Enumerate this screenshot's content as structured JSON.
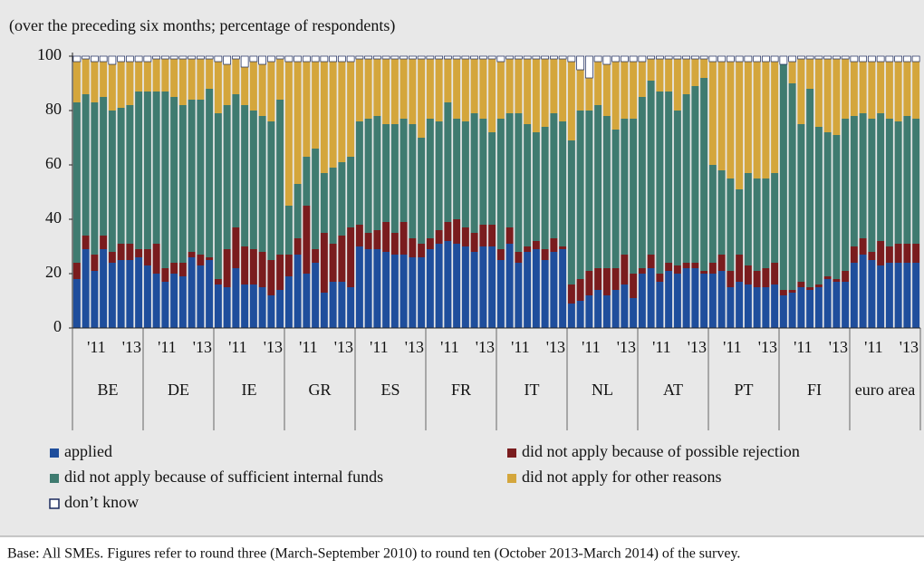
{
  "chart_data": {
    "type": "stacked_bar",
    "title": "(over the preceding six months; percentage of respondents)",
    "footnote": "Base: All SMEs. Figures refer to round three (March-September 2010) to round ten (October 2013-March 2014) of the survey.",
    "groups": [
      "BE",
      "DE",
      "IE",
      "GR",
      "ES",
      "FR",
      "IT",
      "NL",
      "AT",
      "PT",
      "FI",
      "euro area"
    ],
    "categories": [
      null,
      null,
      "'11",
      null,
      null,
      null,
      "'13",
      null
    ],
    "ylim": [
      0,
      100
    ],
    "yticks": [
      0,
      20,
      40,
      60,
      80,
      100
    ],
    "series": [
      {
        "name": "applied",
        "color": "#1f4e9c",
        "values": [
          [
            18,
            29,
            21,
            29,
            24,
            25,
            25,
            26
          ],
          [
            23,
            20,
            17,
            20,
            19,
            26,
            23,
            25
          ],
          [
            16,
            15,
            22,
            16,
            16,
            15,
            12,
            14
          ],
          [
            19,
            27,
            20,
            24,
            13,
            17,
            17,
            15
          ],
          [
            30,
            29,
            29,
            28,
            27,
            27,
            26,
            26
          ],
          [
            29,
            31,
            32,
            31,
            30,
            28,
            30,
            30
          ],
          [
            25,
            31,
            24,
            28,
            29,
            25,
            28,
            29
          ],
          [
            9,
            10,
            12,
            14,
            12,
            14,
            16,
            11
          ],
          [
            20,
            22,
            17,
            21,
            20,
            22,
            22,
            20
          ],
          [
            20,
            21,
            15,
            17,
            16,
            15,
            15,
            16
          ],
          [
            12,
            13,
            15,
            14,
            15,
            18,
            17,
            17
          ],
          [
            24,
            27,
            25,
            23,
            24,
            24,
            24,
            24
          ]
        ]
      },
      {
        "name": "did not apply because of possible rejection",
        "color": "#7a1c1e",
        "values": [
          [
            6,
            5,
            6,
            5,
            4,
            6,
            6,
            3
          ],
          [
            6,
            11,
            5,
            4,
            5,
            2,
            4,
            1
          ],
          [
            2,
            14,
            15,
            14,
            13,
            13,
            13,
            13
          ],
          [
            8,
            6,
            25,
            5,
            22,
            14,
            17,
            22
          ],
          [
            8,
            6,
            7,
            11,
            8,
            12,
            7,
            5
          ],
          [
            4,
            5,
            7,
            9,
            7,
            7,
            8,
            8
          ],
          [
            4,
            6,
            4,
            2,
            3,
            4,
            5,
            1
          ],
          [
            7,
            8,
            9,
            8,
            10,
            8,
            11,
            9
          ],
          [
            2,
            5,
            3,
            3,
            3,
            2,
            2,
            1
          ],
          [
            4,
            6,
            6,
            10,
            7,
            6,
            7,
            8
          ],
          [
            2,
            1,
            2,
            1,
            1,
            1,
            1,
            4
          ],
          [
            6,
            6,
            3,
            9,
            6,
            7,
            7,
            7
          ]
        ]
      },
      {
        "name": "did not apply because of sufficient internal funds",
        "color": "#3f7b70",
        "values": [
          [
            59,
            52,
            56,
            51,
            52,
            50,
            51,
            58
          ],
          [
            58,
            56,
            65,
            61,
            58,
            56,
            57,
            62
          ],
          [
            61,
            53,
            49,
            52,
            51,
            50,
            51,
            57
          ],
          [
            18,
            20,
            18,
            37,
            22,
            28,
            27,
            26
          ],
          [
            38,
            42,
            42,
            36,
            40,
            38,
            42,
            39
          ],
          [
            44,
            40,
            44,
            37,
            39,
            44,
            39,
            34
          ],
          [
            48,
            42,
            51,
            45,
            40,
            45,
            46,
            46
          ],
          [
            53,
            62,
            59,
            60,
            56,
            51,
            50,
            57
          ],
          [
            63,
            64,
            67,
            63,
            57,
            62,
            65,
            71
          ],
          [
            36,
            31,
            34,
            24,
            34,
            34,
            33,
            33
          ],
          [
            83,
            76,
            58,
            73,
            58,
            53,
            53,
            56
          ],
          [
            48,
            46,
            49,
            47,
            47,
            45,
            47,
            46
          ]
        ]
      },
      {
        "name": "did not apply for other reasons",
        "color": "#d4a63c",
        "values": [
          [
            15,
            13,
            15,
            13,
            17,
            17,
            16,
            11
          ],
          [
            11,
            12,
            12,
            14,
            17,
            15,
            15,
            11
          ],
          [
            19,
            15,
            13,
            14,
            18,
            19,
            22,
            15
          ],
          [
            53,
            45,
            35,
            32,
            41,
            39,
            37,
            35
          ],
          [
            23,
            22,
            21,
            24,
            24,
            22,
            24,
            29
          ],
          [
            22,
            23,
            16,
            22,
            23,
            20,
            22,
            27
          ],
          [
            21,
            20,
            20,
            24,
            27,
            25,
            20,
            23
          ],
          [
            29,
            15,
            12,
            16,
            19,
            25,
            21,
            21
          ],
          [
            13,
            8,
            12,
            12,
            19,
            13,
            10,
            7
          ],
          [
            38,
            40,
            43,
            47,
            41,
            43,
            43,
            41
          ],
          [
            0,
            8,
            24,
            11,
            25,
            27,
            28,
            22
          ],
          [
            20,
            19,
            21,
            19,
            21,
            22,
            20,
            21
          ]
        ]
      },
      {
        "name": "don’t know",
        "color": "#ffffff",
        "values": [
          [
            2,
            1,
            2,
            2,
            3,
            2,
            2,
            2
          ],
          [
            2,
            1,
            1,
            1,
            1,
            1,
            1,
            1
          ],
          [
            2,
            3,
            1,
            4,
            2,
            3,
            2,
            1
          ],
          [
            2,
            2,
            2,
            2,
            2,
            2,
            2,
            2
          ],
          [
            1,
            1,
            1,
            1,
            1,
            1,
            1,
            1
          ],
          [
            1,
            1,
            1,
            1,
            1,
            1,
            1,
            1
          ],
          [
            2,
            1,
            1,
            1,
            1,
            1,
            1,
            1
          ],
          [
            2,
            5,
            8,
            2,
            3,
            2,
            2,
            2
          ],
          [
            2,
            1,
            1,
            1,
            1,
            1,
            1,
            1
          ],
          [
            2,
            2,
            2,
            2,
            2,
            2,
            2,
            2
          ],
          [
            3,
            2,
            1,
            1,
            1,
            1,
            1,
            1
          ],
          [
            2,
            2,
            2,
            2,
            2,
            2,
            2,
            2
          ]
        ]
      }
    ]
  }
}
